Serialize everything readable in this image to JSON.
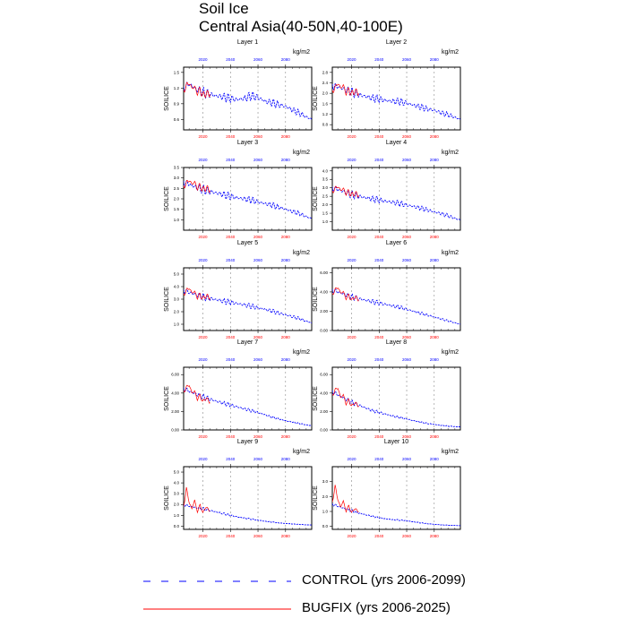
{
  "header": {
    "title": "Soil Ice",
    "subtitle": "Central Asia(40-50N,40-100E)"
  },
  "legend": {
    "control_label": "CONTROL (yrs 2006-2099)",
    "bugfix_label": "BUGFIX (yrs 2006-2025)",
    "control_color": "#0000ff",
    "bugfix_color": "#ff0000"
  },
  "chart_data": [
    {
      "type": "line",
      "title": "Layer 1",
      "units": "kg/m2",
      "ylabel": "SOILICE",
      "xlim": [
        2006,
        2099
      ],
      "ylim": [
        0.4,
        1.6
      ],
      "yticks": [
        0.6,
        0.9,
        1.2,
        1.5
      ],
      "ytick_labels": [
        "0.6",
        "0.9",
        "1.2",
        "1.5"
      ],
      "blue_xticks": [
        2020,
        2040,
        2060,
        2080
      ],
      "red_xticks": [
        2020,
        2040,
        2060,
        2080
      ],
      "series": [
        {
          "name": "CONTROL",
          "x": [
            2006,
            2010,
            2015,
            2020,
            2025,
            2030,
            2035,
            2040,
            2045,
            2050,
            2055,
            2060,
            2065,
            2070,
            2075,
            2080,
            2085,
            2090,
            2095,
            2099
          ],
          "values": [
            1.2,
            1.28,
            1.18,
            1.12,
            1.08,
            1.05,
            1.03,
            1.0,
            0.98,
            1.0,
            1.05,
            1.02,
            0.95,
            0.92,
            0.88,
            0.85,
            0.78,
            0.72,
            0.65,
            0.6
          ]
        },
        {
          "name": "BUGFIX",
          "x": [
            2006,
            2008,
            2010,
            2012,
            2014,
            2016,
            2018,
            2020,
            2022,
            2025
          ],
          "values": [
            1.15,
            1.25,
            1.3,
            1.2,
            1.22,
            1.1,
            1.18,
            1.05,
            1.1,
            1.08
          ]
        }
      ]
    },
    {
      "type": "line",
      "title": "Layer 2",
      "units": "kg/m2",
      "ylabel": "SOILICE",
      "xlim": [
        2006,
        2099
      ],
      "ylim": [
        0.6,
        3.0
      ],
      "yticks": [
        0.8,
        1.2,
        1.6,
        2.0,
        2.4,
        2.8
      ],
      "ytick_labels": [
        "0.8",
        "1.2",
        "1.6",
        "2.0",
        "2.4",
        "2.8"
      ],
      "blue_xticks": [
        2020,
        2040,
        2060,
        2080
      ],
      "red_xticks": [
        2020,
        2040,
        2060,
        2080
      ],
      "series": [
        {
          "name": "CONTROL",
          "x": [
            2006,
            2010,
            2015,
            2020,
            2025,
            2030,
            2035,
            2040,
            2045,
            2050,
            2055,
            2060,
            2065,
            2070,
            2075,
            2080,
            2085,
            2090,
            2095,
            2099
          ],
          "values": [
            2.3,
            2.25,
            2.15,
            2.05,
            1.95,
            1.88,
            1.82,
            1.78,
            1.72,
            1.7,
            1.68,
            1.62,
            1.55,
            1.48,
            1.4,
            1.35,
            1.25,
            1.18,
            1.08,
            1.0
          ]
        },
        {
          "name": "BUGFIX",
          "x": [
            2006,
            2008,
            2010,
            2012,
            2014,
            2016,
            2018,
            2020,
            2022,
            2025
          ],
          "values": [
            2.1,
            2.2,
            2.4,
            2.2,
            2.3,
            2.0,
            2.15,
            1.95,
            2.1,
            2.0
          ]
        }
      ]
    },
    {
      "type": "line",
      "title": "Layer 3",
      "units": "kg/m2",
      "ylabel": "SOILICE",
      "xlim": [
        2006,
        2099
      ],
      "ylim": [
        0.5,
        3.5
      ],
      "yticks": [
        1.0,
        1.5,
        2.0,
        2.5,
        3.0,
        3.5
      ],
      "ytick_labels": [
        "1.0",
        "1.5",
        "2.0",
        "2.5",
        "3.0",
        "3.5"
      ],
      "blue_xticks": [
        2020,
        2040,
        2060,
        2080
      ],
      "red_xticks": [
        2020,
        2040,
        2060,
        2080
      ],
      "series": [
        {
          "name": "CONTROL",
          "x": [
            2006,
            2010,
            2015,
            2020,
            2025,
            2030,
            2035,
            2040,
            2045,
            2050,
            2055,
            2060,
            2065,
            2070,
            2075,
            2080,
            2085,
            2090,
            2095,
            2099
          ],
          "values": [
            2.8,
            2.7,
            2.55,
            2.45,
            2.35,
            2.28,
            2.2,
            2.12,
            2.05,
            2.0,
            1.95,
            1.85,
            1.78,
            1.7,
            1.6,
            1.5,
            1.4,
            1.3,
            1.15,
            1.05
          ]
        },
        {
          "name": "BUGFIX",
          "x": [
            2006,
            2008,
            2010,
            2012,
            2014,
            2016,
            2018,
            2020,
            2022,
            2025
          ],
          "values": [
            2.6,
            2.75,
            2.9,
            2.7,
            2.8,
            2.5,
            2.65,
            2.4,
            2.55,
            2.4
          ]
        }
      ]
    },
    {
      "type": "line",
      "title": "Layer 4",
      "units": "kg/m2",
      "ylabel": "SOILICE",
      "xlim": [
        2006,
        2099
      ],
      "ylim": [
        0.5,
        4.2
      ],
      "yticks": [
        1.0,
        1.5,
        2.0,
        2.5,
        3.0,
        3.5,
        4.0
      ],
      "ytick_labels": [
        "1.0",
        "1.5",
        "2.0",
        "2.5",
        "3.0",
        "3.5",
        "4.0"
      ],
      "blue_xticks": [
        2020,
        2040,
        2060,
        2080
      ],
      "red_xticks": [
        2020,
        2040,
        2060,
        2080
      ],
      "series": [
        {
          "name": "CONTROL",
          "x": [
            2006,
            2010,
            2015,
            2020,
            2025,
            2030,
            2035,
            2040,
            2045,
            2050,
            2055,
            2060,
            2065,
            2070,
            2075,
            2080,
            2085,
            2090,
            2095,
            2099
          ],
          "values": [
            3.0,
            2.9,
            2.75,
            2.6,
            2.5,
            2.42,
            2.35,
            2.28,
            2.2,
            2.15,
            2.08,
            1.98,
            1.9,
            1.8,
            1.7,
            1.58,
            1.48,
            1.35,
            1.2,
            1.1
          ]
        },
        {
          "name": "BUGFIX",
          "x": [
            2006,
            2008,
            2010,
            2012,
            2014,
            2016,
            2018,
            2020,
            2022,
            2025
          ],
          "values": [
            2.8,
            2.95,
            3.1,
            2.85,
            2.95,
            2.65,
            2.8,
            2.55,
            2.7,
            2.55
          ]
        }
      ]
    },
    {
      "type": "line",
      "title": "Layer 5",
      "units": "kg/m2",
      "ylabel": "SOILICE",
      "xlim": [
        2006,
        2099
      ],
      "ylim": [
        0.5,
        5.5
      ],
      "yticks": [
        1.0,
        2.0,
        3.0,
        4.0,
        5.0
      ],
      "ytick_labels": [
        "1.0",
        "2.0",
        "3.0",
        "4.0",
        "5.0"
      ],
      "blue_xticks": [
        2020,
        2040,
        2060,
        2080
      ],
      "red_xticks": [
        2020,
        2040,
        2060,
        2080
      ],
      "series": [
        {
          "name": "CONTROL",
          "x": [
            2006,
            2010,
            2015,
            2020,
            2025,
            2030,
            2035,
            2040,
            2045,
            2050,
            2055,
            2060,
            2065,
            2070,
            2075,
            2080,
            2085,
            2090,
            2095,
            2099
          ],
          "values": [
            3.7,
            3.55,
            3.35,
            3.2,
            3.05,
            2.95,
            2.85,
            2.75,
            2.65,
            2.55,
            2.45,
            2.3,
            2.2,
            2.05,
            1.9,
            1.75,
            1.6,
            1.45,
            1.25,
            1.1
          ]
        },
        {
          "name": "BUGFIX",
          "x": [
            2006,
            2008,
            2010,
            2012,
            2014,
            2016,
            2018,
            2020,
            2022,
            2025
          ],
          "values": [
            3.4,
            3.7,
            3.9,
            3.5,
            3.6,
            3.1,
            3.4,
            3.0,
            3.3,
            3.1
          ]
        }
      ]
    },
    {
      "type": "line",
      "title": "Layer 6",
      "units": "kg/m2",
      "ylabel": "SOILICE",
      "xlim": [
        2006,
        2099
      ],
      "ylim": [
        0,
        6.5
      ],
      "yticks": [
        0.0,
        2.0,
        4.0,
        6.0
      ],
      "ytick_labels": [
        "0.00",
        "2.00",
        "4.00",
        "6.00"
      ],
      "blue_xticks": [
        2020,
        2040,
        2060,
        2080
      ],
      "red_xticks": [
        2020,
        2040,
        2060,
        2080
      ],
      "series": [
        {
          "name": "CONTROL",
          "x": [
            2006,
            2010,
            2015,
            2020,
            2025,
            2030,
            2035,
            2040,
            2045,
            2050,
            2055,
            2060,
            2065,
            2070,
            2075,
            2080,
            2085,
            2090,
            2095,
            2099
          ],
          "values": [
            4.2,
            4.0,
            3.75,
            3.5,
            3.3,
            3.15,
            3.0,
            2.85,
            2.7,
            2.55,
            2.4,
            2.2,
            2.0,
            1.8,
            1.6,
            1.4,
            1.2,
            1.0,
            0.8,
            0.65
          ]
        },
        {
          "name": "BUGFIX",
          "x": [
            2006,
            2008,
            2010,
            2012,
            2014,
            2016,
            2018,
            2020,
            2022,
            2025
          ],
          "values": [
            3.8,
            4.2,
            4.5,
            3.9,
            4.0,
            3.3,
            3.7,
            3.1,
            3.5,
            3.2
          ]
        }
      ]
    },
    {
      "type": "line",
      "title": "Layer 7",
      "units": "kg/m2",
      "ylabel": "SOILICE",
      "xlim": [
        2006,
        2099
      ],
      "ylim": [
        0,
        6.8
      ],
      "yticks": [
        0.0,
        2.0,
        4.0,
        6.0
      ],
      "ytick_labels": [
        "0.00",
        "2.00",
        "4.00",
        "6.00"
      ],
      "blue_xticks": [
        2020,
        2040,
        2060,
        2080
      ],
      "red_xticks": [
        2020,
        2040,
        2060,
        2080
      ],
      "series": [
        {
          "name": "CONTROL",
          "x": [
            2006,
            2010,
            2015,
            2020,
            2025,
            2030,
            2035,
            2040,
            2045,
            2050,
            2055,
            2060,
            2065,
            2070,
            2075,
            2080,
            2085,
            2090,
            2095,
            2099
          ],
          "values": [
            4.5,
            4.2,
            3.9,
            3.6,
            3.35,
            3.1,
            2.9,
            2.7,
            2.5,
            2.3,
            2.1,
            1.9,
            1.65,
            1.4,
            1.2,
            1.0,
            0.85,
            0.7,
            0.55,
            0.45
          ]
        },
        {
          "name": "BUGFIX",
          "x": [
            2006,
            2008,
            2010,
            2012,
            2014,
            2016,
            2018,
            2020,
            2022,
            2025
          ],
          "values": [
            4.2,
            4.6,
            4.9,
            4.0,
            4.2,
            3.3,
            3.8,
            3.0,
            3.5,
            3.0
          ]
        }
      ]
    },
    {
      "type": "line",
      "title": "Layer 8",
      "units": "kg/m2",
      "ylabel": "SOILICE",
      "xlim": [
        2006,
        2099
      ],
      "ylim": [
        0,
        6.8
      ],
      "yticks": [
        0.0,
        2.0,
        4.0,
        6.0
      ],
      "ytick_labels": [
        "0.00",
        "2.00",
        "4.00",
        "6.00"
      ],
      "blue_xticks": [
        2020,
        2040,
        2060,
        2080
      ],
      "red_xticks": [
        2020,
        2040,
        2060,
        2080
      ],
      "series": [
        {
          "name": "CONTROL",
          "x": [
            2006,
            2010,
            2015,
            2020,
            2025,
            2030,
            2035,
            2040,
            2045,
            2050,
            2055,
            2060,
            2065,
            2070,
            2075,
            2080,
            2085,
            2090,
            2095,
            2099
          ],
          "values": [
            4.2,
            3.8,
            3.4,
            3.0,
            2.7,
            2.4,
            2.1,
            1.9,
            1.7,
            1.5,
            1.35,
            1.2,
            1.0,
            0.85,
            0.7,
            0.6,
            0.5,
            0.42,
            0.36,
            0.32
          ]
        },
        {
          "name": "BUGFIX",
          "x": [
            2006,
            2008,
            2010,
            2012,
            2014,
            2016,
            2018,
            2020,
            2022,
            2025
          ],
          "values": [
            3.8,
            4.3,
            4.6,
            3.5,
            3.8,
            2.8,
            3.3,
            2.5,
            3.0,
            2.6
          ]
        }
      ]
    },
    {
      "type": "line",
      "title": "Layer 9",
      "units": "kg/m2",
      "ylabel": "SOILICE",
      "xlim": [
        2006,
        2099
      ],
      "ylim": [
        -0.3,
        5.5
      ],
      "yticks": [
        0.0,
        1.0,
        2.0,
        3.0,
        4.0,
        5.0
      ],
      "ytick_labels": [
        "0.0",
        "1.0",
        "2.0",
        "3.0",
        "4.0",
        "5.0"
      ],
      "blue_xticks": [
        2020,
        2040,
        2060,
        2080
      ],
      "red_xticks": [
        2020,
        2040,
        2060,
        2080
      ],
      "series": [
        {
          "name": "CONTROL",
          "x": [
            2006,
            2010,
            2015,
            2020,
            2025,
            2030,
            2035,
            2040,
            2045,
            2050,
            2055,
            2060,
            2065,
            2070,
            2075,
            2080,
            2085,
            2090,
            2095,
            2099
          ],
          "values": [
            2.0,
            1.85,
            1.7,
            1.6,
            1.45,
            1.3,
            1.15,
            1.0,
            0.85,
            0.75,
            0.65,
            0.55,
            0.45,
            0.38,
            0.3,
            0.25,
            0.2,
            0.16,
            0.12,
            0.1
          ]
        },
        {
          "name": "BUGFIX",
          "x": [
            2006,
            2008,
            2010,
            2012,
            2014,
            2016,
            2018,
            2020,
            2022,
            2025
          ],
          "values": [
            1.8,
            3.5,
            2.2,
            1.6,
            2.4,
            1.3,
            2.0,
            1.2,
            1.8,
            1.4
          ]
        }
      ]
    },
    {
      "type": "line",
      "title": "Layer 10",
      "units": "kg/m2",
      "ylabel": "SOILICE",
      "xlim": [
        2006,
        2099
      ],
      "ylim": [
        -0.2,
        4.0
      ],
      "yticks": [
        0.0,
        1.0,
        2.0,
        3.0
      ],
      "ytick_labels": [
        "0.0",
        "1.0",
        "2.0",
        "3.0"
      ],
      "blue_xticks": [
        2020,
        2040,
        2060,
        2080
      ],
      "red_xticks": [
        2020,
        2040,
        2060,
        2080
      ],
      "series": [
        {
          "name": "CONTROL",
          "x": [
            2006,
            2010,
            2015,
            2020,
            2025,
            2030,
            2035,
            2040,
            2045,
            2050,
            2055,
            2060,
            2065,
            2070,
            2075,
            2080,
            2085,
            2090,
            2095,
            2099
          ],
          "values": [
            1.5,
            1.35,
            1.2,
            1.05,
            0.9,
            0.78,
            0.68,
            0.58,
            0.5,
            0.45,
            0.42,
            0.38,
            0.3,
            0.24,
            0.18,
            0.14,
            0.1,
            0.08,
            0.06,
            0.05
          ]
        },
        {
          "name": "BUGFIX",
          "x": [
            2006,
            2008,
            2010,
            2012,
            2014,
            2016,
            2018,
            2020,
            2022,
            2025
          ],
          "values": [
            1.6,
            2.7,
            1.8,
            1.3,
            1.7,
            1.0,
            1.4,
            0.9,
            1.2,
            1.0
          ]
        }
      ]
    }
  ]
}
